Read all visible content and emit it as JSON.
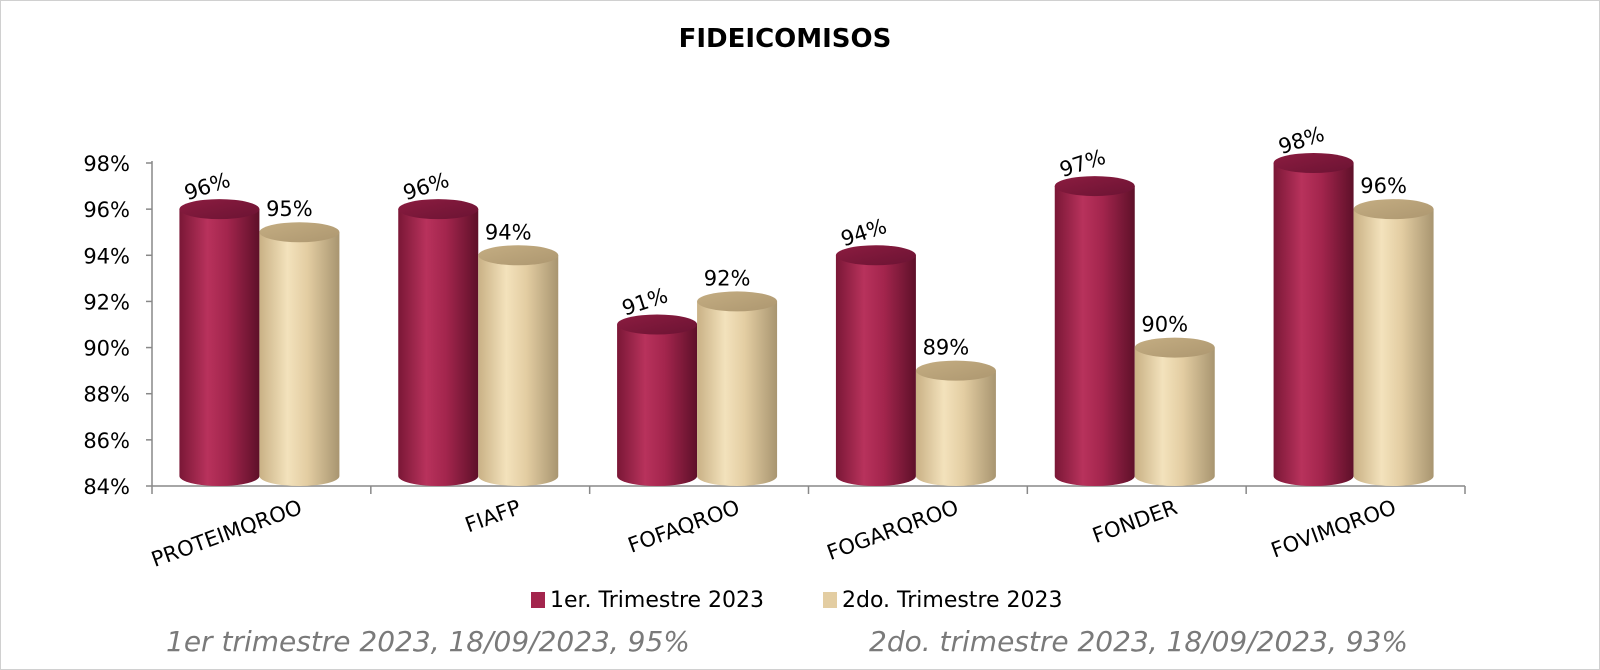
{
  "chart_data": {
    "type": "bar",
    "style": "3d-cylinder",
    "title": "FIDEICOMISOS",
    "categories": [
      "PROTEIMQROO",
      "FIAFP",
      "FOFAQROO",
      "FOGARQROO",
      "FONDER",
      "FOVIMQROO"
    ],
    "series": [
      {
        "name": "1er. Trimestre 2023",
        "color": "#a3254d",
        "values": [
          96,
          96,
          91,
          94,
          97,
          98
        ],
        "labels": [
          "96%",
          "96%",
          "91%",
          "94%",
          "97%",
          "98%"
        ]
      },
      {
        "name": "2do. Trimestre 2023",
        "color": "#e3cda2",
        "values": [
          95,
          94,
          92,
          89,
          90,
          96
        ],
        "labels": [
          "95%",
          "94%",
          "92%",
          "89%",
          "90%",
          "96%"
        ]
      }
    ],
    "ylim": [
      84,
      98
    ],
    "yticks": [
      "84%",
      "86%",
      "88%",
      "90%",
      "92%",
      "94%",
      "96%",
      "98%"
    ],
    "ytick_values": [
      84,
      86,
      88,
      90,
      92,
      94,
      96,
      98
    ],
    "grid": false,
    "legend": "bottom"
  },
  "footer": {
    "left": "1er trimestre  2023,  18/09/2023, 95%",
    "right": "2do. trimestre 2023, 18/09/2023, 93%"
  }
}
